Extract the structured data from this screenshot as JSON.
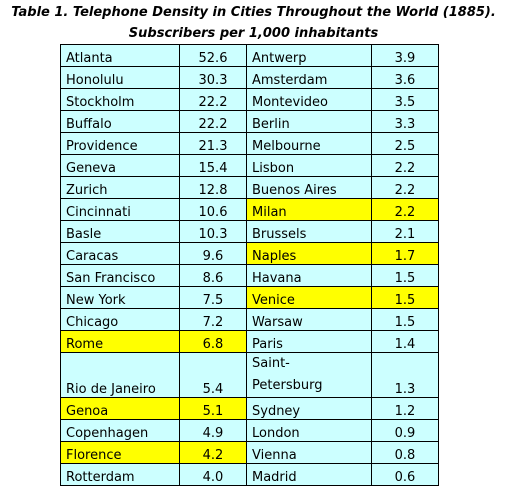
{
  "caption": {
    "line1": "Table 1. Telephone Density in Cities Throughout the World (1885).",
    "line2": "Subscribers per 1,000 inhabitants"
  },
  "colors": {
    "cell_bg": "#ccffff",
    "highlight": "#ffff00"
  },
  "rows": [
    {
      "city1": "Atlanta",
      "val1": "52.6",
      "city2": "Antwerp",
      "val2": "3.9",
      "hl1": false,
      "hl2": false
    },
    {
      "city1": "Honolulu",
      "val1": "30.3",
      "city2": "Amsterdam",
      "val2": "3.6",
      "hl1": false,
      "hl2": false
    },
    {
      "city1": "Stockholm",
      "val1": "22.2",
      "city2": "Montevideo",
      "val2": "3.5",
      "hl1": false,
      "hl2": false
    },
    {
      "city1": "Buffalo",
      "val1": "22.2",
      "city2": "Berlin",
      "val2": "3.3",
      "hl1": false,
      "hl2": false
    },
    {
      "city1": "Providence",
      "val1": "21.3",
      "city2": "Melbourne",
      "val2": "2.5",
      "hl1": false,
      "hl2": false
    },
    {
      "city1": "Geneva",
      "val1": "15.4",
      "city2": "Lisbon",
      "val2": "2.2",
      "hl1": false,
      "hl2": false
    },
    {
      "city1": "Zurich",
      "val1": "12.8",
      "city2": "Buenos Aires",
      "val2": "2.2",
      "hl1": false,
      "hl2": false
    },
    {
      "city1": "Cincinnati",
      "val1": "10.6",
      "city2": "Milan",
      "val2": "2.2",
      "hl1": false,
      "hl2": true
    },
    {
      "city1": "Basle",
      "val1": "10.3",
      "city2": "Brussels",
      "val2": "2.1",
      "hl1": false,
      "hl2": false
    },
    {
      "city1": "Caracas",
      "val1": "9.6",
      "city2": "Naples",
      "val2": "1.7",
      "hl1": false,
      "hl2": true
    },
    {
      "city1": "San Francisco",
      "val1": "8.6",
      "city2": "Havana",
      "val2": "1.5",
      "hl1": false,
      "hl2": false
    },
    {
      "city1": "New York",
      "val1": "7.5",
      "city2": "Venice",
      "val2": "1.5",
      "hl1": false,
      "hl2": true
    },
    {
      "city1": "Chicago",
      "val1": "7.2",
      "city2": "Warsaw",
      "val2": "1.5",
      "hl1": false,
      "hl2": false
    },
    {
      "city1": "Rome",
      "val1": "6.8",
      "city2": "Paris",
      "val2": "1.4",
      "hl1": true,
      "hl2": false
    },
    {
      "city1": "Rio de Janeiro",
      "val1": "5.4",
      "city2": "Saint-Petersburg",
      "val2": "1.3",
      "hl1": false,
      "hl2": false
    },
    {
      "city1": "Genoa",
      "val1": "5.1",
      "city2": "Sydney",
      "val2": "1.2",
      "hl1": true,
      "hl2": false
    },
    {
      "city1": "Copenhagen",
      "val1": "4.9",
      "city2": "London",
      "val2": "0.9",
      "hl1": false,
      "hl2": false
    },
    {
      "city1": "Florence",
      "val1": "4.2",
      "city2": "Vienna",
      "val2": "0.8",
      "hl1": true,
      "hl2": false
    },
    {
      "city1": "Rotterdam",
      "val1": "4.0",
      "city2": "Madrid",
      "val2": "0.6",
      "hl1": false,
      "hl2": false
    }
  ]
}
